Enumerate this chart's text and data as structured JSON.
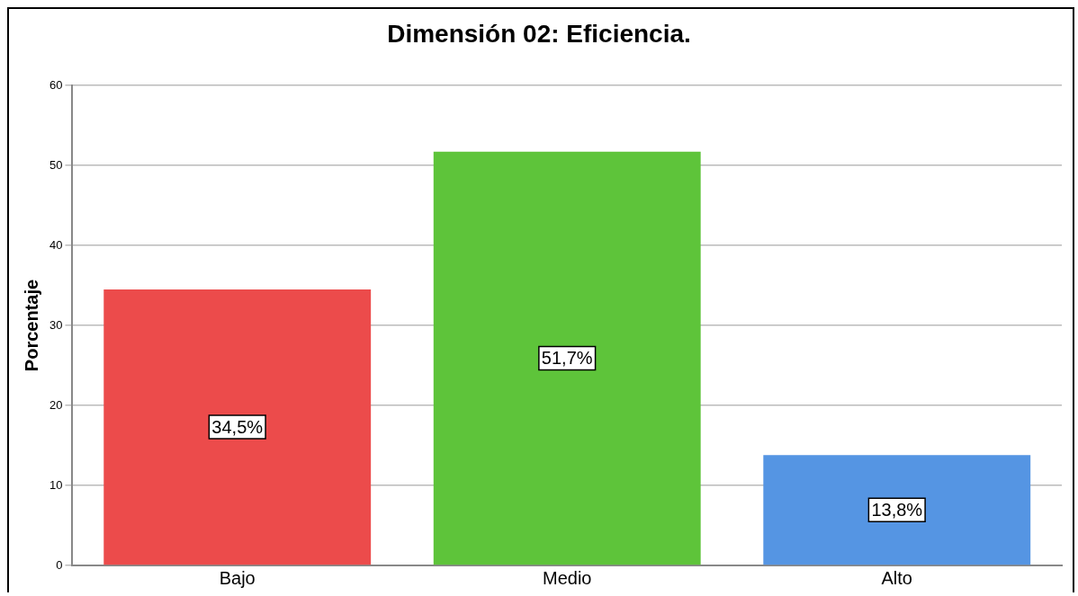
{
  "chart_data": {
    "type": "bar",
    "title": "Dimensión 02: Eficiencia.",
    "ylabel": "Porcentaje",
    "categories": [
      "Bajo",
      "Medio",
      "Alto"
    ],
    "values": [
      34.5,
      51.7,
      13.8
    ],
    "colors": [
      "#ec4b4b",
      "#5ec43a",
      "#5595e3"
    ],
    "value_labels": [
      "34,5%",
      "51,7%",
      "13,8%"
    ],
    "ylim": [
      0,
      60
    ],
    "yticks": [
      0,
      10,
      20,
      30,
      40,
      50,
      60
    ],
    "grid": "y",
    "legend": false
  }
}
